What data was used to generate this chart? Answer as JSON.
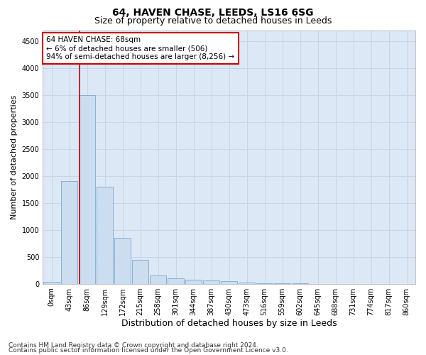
{
  "title1": "64, HAVEN CHASE, LEEDS, LS16 6SG",
  "title2": "Size of property relative to detached houses in Leeds",
  "xlabel": "Distribution of detached houses by size in Leeds",
  "ylabel": "Number of detached properties",
  "bar_labels": [
    "0sqm",
    "43sqm",
    "86sqm",
    "129sqm",
    "172sqm",
    "215sqm",
    "258sqm",
    "301sqm",
    "344sqm",
    "387sqm",
    "430sqm",
    "473sqm",
    "516sqm",
    "559sqm",
    "602sqm",
    "645sqm",
    "688sqm",
    "731sqm",
    "774sqm",
    "817sqm",
    "860sqm"
  ],
  "bar_values": [
    30,
    1900,
    3500,
    1800,
    850,
    450,
    150,
    100,
    75,
    60,
    50,
    20,
    10,
    5,
    3,
    2,
    1,
    1,
    0,
    0,
    0
  ],
  "bar_color": "#ccddf0",
  "bar_edge_color": "#7aaad0",
  "grid_color": "#c8d4e8",
  "background_color": "#dce8f5",
  "vline_x_index": 1.58,
  "vline_color": "#cc0000",
  "annotation_line1": "64 HAVEN CHASE: 68sqm",
  "annotation_line2": "← 6% of detached houses are smaller (506)",
  "annotation_line3": "94% of semi-detached houses are larger (8,256) →",
  "annotation_box_color": "#ffffff",
  "annotation_box_edge": "#cc0000",
  "ylim": [
    0,
    4700
  ],
  "yticks": [
    0,
    500,
    1000,
    1500,
    2000,
    2500,
    3000,
    3500,
    4000,
    4500
  ],
  "footer1": "Contains HM Land Registry data © Crown copyright and database right 2024.",
  "footer2": "Contains public sector information licensed under the Open Government Licence v3.0.",
  "title1_fontsize": 10,
  "title2_fontsize": 9,
  "xlabel_fontsize": 9,
  "ylabel_fontsize": 8,
  "tick_fontsize": 7,
  "annotation_fontsize": 7.5,
  "footer_fontsize": 6.5
}
